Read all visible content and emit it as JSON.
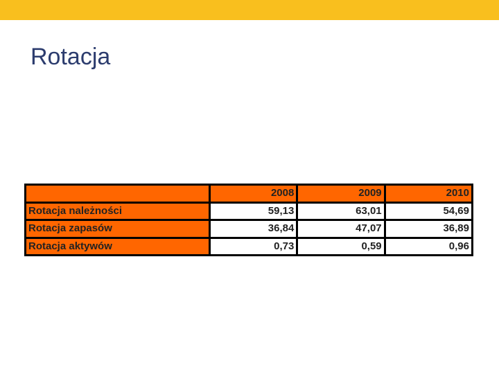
{
  "slide": {
    "title": "Rotacja",
    "accent_color": "#f9bf1e",
    "table_highlight_color": "#ff6600"
  },
  "table": {
    "header": [
      "",
      "2008",
      "2009",
      "2010"
    ],
    "rows": [
      {
        "label": "Rotacja należności",
        "values": [
          "59,13",
          "63,01",
          "54,69"
        ]
      },
      {
        "label": "Rotacja zapasów",
        "values": [
          "36,84",
          "47,07",
          "36,89"
        ]
      },
      {
        "label": "Rotacja aktywów",
        "values": [
          "0,73",
          "0,59",
          "0,96"
        ]
      }
    ]
  }
}
